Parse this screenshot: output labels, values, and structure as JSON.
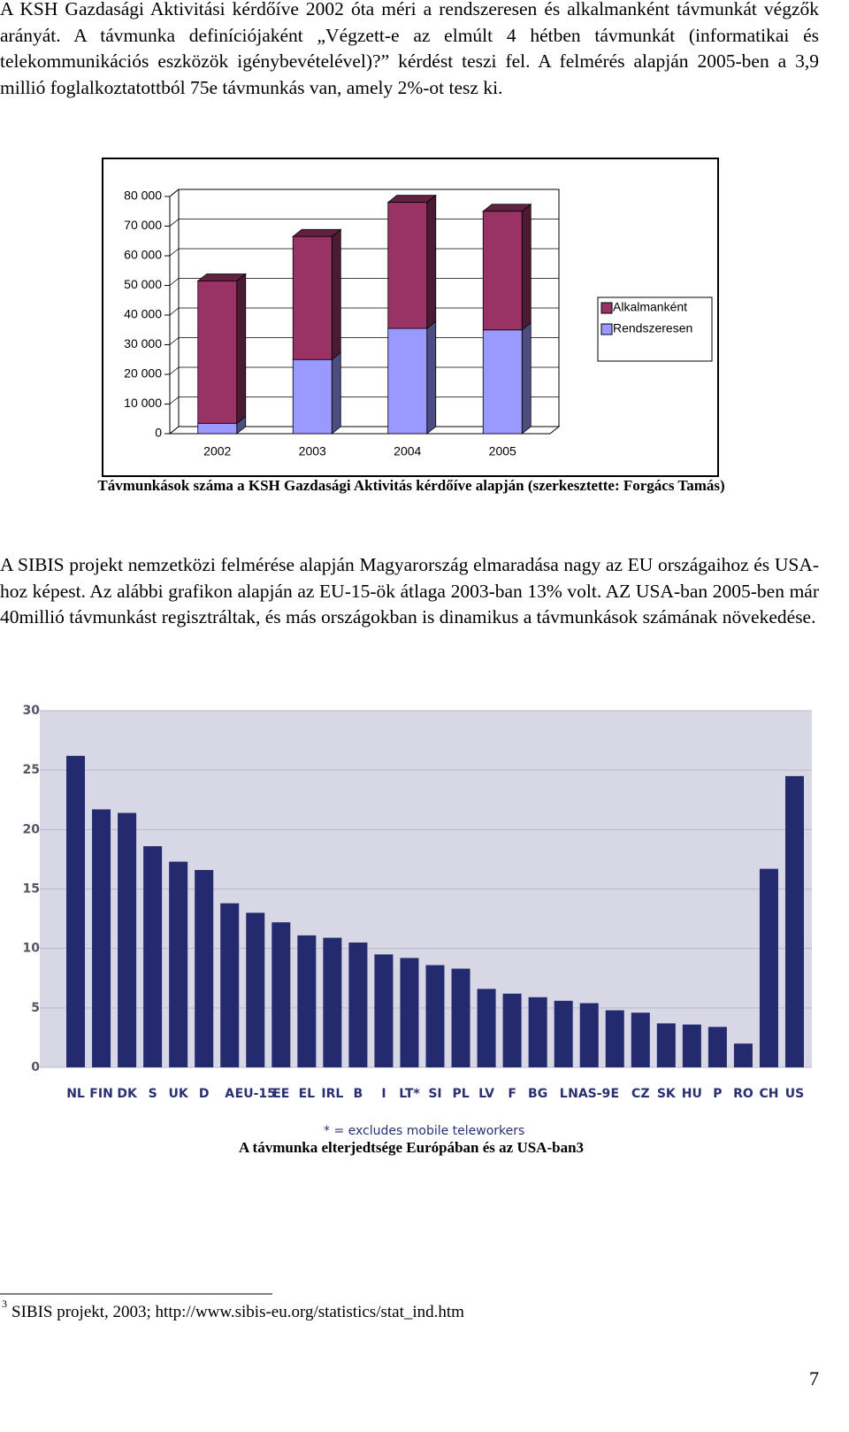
{
  "paragraphs": [
    "A KSH Gazdasági Aktivitási kérdőíve 2002 óta méri a rendszeresen és alkalmanként távmunkát végzők arányát. A távmunka definíciójaként „Végzett-e az elmúlt 4 hétben távmunkát (informatikai és telekommunikációs eszközök igénybevételével)?” kérdést teszi fel. A felmérés alapján 2005-ben a 3,9 millió foglalkoztatottból 75e távmunkás van, amely 2%-ot tesz ki.",
    "A SIBIS projekt nemzetközi felmérése alapján Magyarország elmaradása nagy az EU országaihoz és USA-hoz képest. Az alábbi grafikon alapján az EU-15-ök átlaga 2003-ban 13% volt. AZ USA-ban 2005-ben már 40millió távmunkást regisztráltak, és más országokban is dinamikus a távmunkások számának növekedése."
  ],
  "chart_data": [
    {
      "type": "bar",
      "stacked": true,
      "three_d": true,
      "legend": "right",
      "caption": "Távmunkások száma a KSH Gazdasági Aktivitás kérdőíve alapján (szerkesztette: Forgács Tamás)",
      "categories": [
        "2002",
        "2003",
        "2004",
        "2005"
      ],
      "series": [
        {
          "name": "Rendszeresen",
          "color": "#9999ff",
          "values": [
            3500,
            25000,
            35500,
            35000
          ]
        },
        {
          "name": "Alkalmanként",
          "color": "#993366",
          "values": [
            48000,
            41500,
            42500,
            40000
          ]
        }
      ],
      "ylim": [
        0,
        80000
      ],
      "yticks": [
        0,
        {
          "value": 10000,
          "label": "10 000"
        },
        {
          "value": 20000,
          "label": "20 000"
        },
        {
          "value": 30000,
          "label": "30 000"
        },
        {
          "value": 40000,
          "label": "40 000"
        },
        {
          "value": 50000,
          "label": "50 000"
        },
        {
          "value": 60000,
          "label": "60 000"
        },
        {
          "value": 70000,
          "label": "70 000"
        },
        {
          "value": 80000,
          "label": "80 000"
        }
      ],
      "grid": true
    },
    {
      "type": "bar",
      "color": "#232a6e",
      "plot_background": "#d7d7e6",
      "grid": true,
      "note": "* = excludes mobile teleworkers",
      "caption": "A távmunka elterjedtsége Európában és az USA-ban3",
      "categories": [
        "NL",
        "FIN",
        "DK",
        "S",
        "UK",
        "D",
        "A",
        "EU-15",
        "EE",
        "EL",
        "IRL",
        "B",
        "I",
        "LT*",
        "SI",
        "PL",
        "LV",
        "F",
        "BG",
        "L",
        "NAS-9",
        "E",
        "CZ",
        "SK",
        "HU",
        "P",
        "RO",
        "CH",
        "US"
      ],
      "values": [
        26.2,
        21.7,
        21.4,
        18.6,
        17.3,
        16.6,
        13.8,
        13.0,
        12.2,
        11.1,
        10.9,
        10.5,
        9.5,
        9.2,
        8.6,
        8.3,
        6.6,
        6.2,
        5.9,
        5.6,
        5.4,
        4.8,
        4.6,
        3.7,
        3.6,
        3.4,
        2.0,
        16.7,
        24.5
      ],
      "ylim": [
        0,
        30
      ],
      "yticks": [
        0,
        5,
        10,
        15,
        20,
        25,
        30
      ]
    }
  ],
  "footnote": {
    "marker": "3",
    "text": "SIBIS projekt, 2003; http://www.sibis-eu.org/statistics/stat_ind.htm"
  },
  "page_number": "7"
}
